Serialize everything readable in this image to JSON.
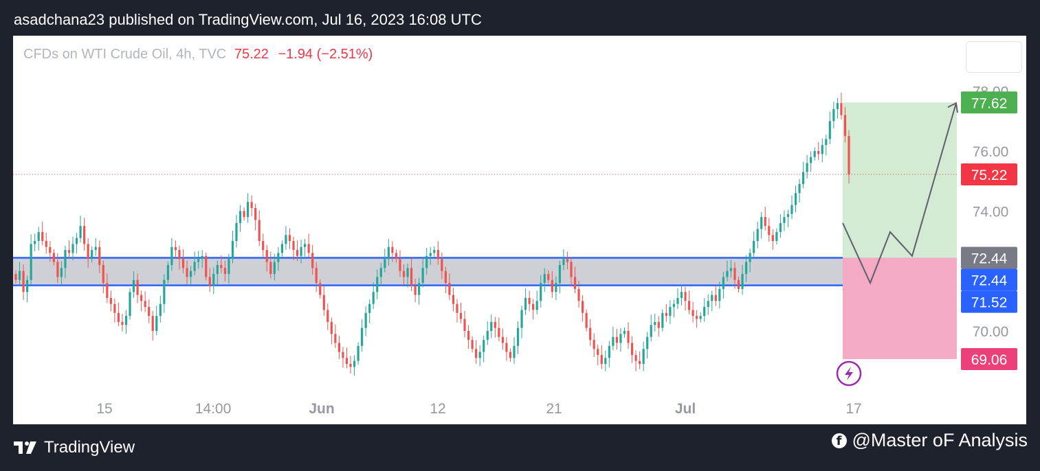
{
  "header": {
    "publish_text": "asadchana23 published on TradingView.com, Jul 16, 2023 16:08 UTC"
  },
  "legend": {
    "symbol": "CFDs on WTI Crude Oil, 4h, TVC",
    "price": "75.22",
    "change": "−1.94 (−2.51%)"
  },
  "footer": {
    "brand": "TradingView",
    "credit": "@Master oF Analysis",
    "brand_icon": "tradingview-logo-icon",
    "credit_icon": "facebook-icon"
  },
  "colors": {
    "up": "#26a69a",
    "down": "#ef5350",
    "zone_line": "#2962ff",
    "zone_fill": "#c9cbd0",
    "profit": "#d3ebd3",
    "loss": "#f4a9c5",
    "target_label": "#4caf50",
    "stop_label": "#ec407a",
    "last_label": "#f23645",
    "grey_label": "#787b86",
    "blue_label": "#2962ff"
  },
  "chart_data": {
    "type": "candlestick",
    "symbol": "CFDs on WTI Crude Oil",
    "timeframe": "4h",
    "source": "TVC",
    "ylim": [
      68.0,
      79.0
    ],
    "y_ticks": [
      "78.00",
      "76.00",
      "74.00",
      "70.00"
    ],
    "x_ticks": [
      "15",
      "14:00",
      "Jun",
      "12",
      "21",
      "Jul",
      "17"
    ],
    "bold_x_ticks": [
      "Jun",
      "Jul"
    ],
    "last_price": 75.22,
    "price_labels": [
      {
        "value": 77.62,
        "text": "77.62",
        "role": "target"
      },
      {
        "value": 75.22,
        "text": "75.22",
        "role": "last"
      },
      {
        "value": 72.44,
        "text": "72.44",
        "role": "entry"
      },
      {
        "value": 72.44,
        "text": "72.44",
        "role": "zone-top"
      },
      {
        "value": 71.52,
        "text": "71.52",
        "role": "zone-bottom"
      },
      {
        "value": 69.06,
        "text": "69.06",
        "role": "stop"
      }
    ],
    "zone": {
      "top": 72.44,
      "bottom": 71.52
    },
    "position": {
      "entry": 72.44,
      "target": 77.62,
      "stop": 69.06
    },
    "projection_path": [
      73.6,
      71.6,
      73.3,
      72.5,
      77.6
    ],
    "closes": [
      71.7,
      72.0,
      71.3,
      71.7,
      72.9,
      73.0,
      73.3,
      73.0,
      72.8,
      72.6,
      72.3,
      71.8,
      72.1,
      72.7,
      72.6,
      72.9,
      73.1,
      73.5,
      72.9,
      72.4,
      72.7,
      72.8,
      72.2,
      71.6,
      71.1,
      70.9,
      70.6,
      70.3,
      70.2,
      70.5,
      71.3,
      71.7,
      71.2,
      71.0,
      70.8,
      70.5,
      70.0,
      70.5,
      70.9,
      71.7,
      72.2,
      72.8,
      72.7,
      72.4,
      72.1,
      71.8,
      72.0,
      72.3,
      72.4,
      72.5,
      71.8,
      71.5,
      71.9,
      72.2,
      72.1,
      71.9,
      72.4,
      73.0,
      73.6,
      74.0,
      73.8,
      74.3,
      74.1,
      73.7,
      73.0,
      72.7,
      72.3,
      71.9,
      72.3,
      72.6,
      72.9,
      73.2,
      73.0,
      72.7,
      72.5,
      72.8,
      72.9,
      72.6,
      72.1,
      71.6,
      71.2,
      70.7,
      70.3,
      69.9,
      69.6,
      69.3,
      69.1,
      68.9,
      68.8,
      69.0,
      69.5,
      70.1,
      70.6,
      70.9,
      71.3,
      71.8,
      72.1,
      72.4,
      72.8,
      72.6,
      72.4,
      72.0,
      71.8,
      72.1,
      71.5,
      71.2,
      71.6,
      72.1,
      72.5,
      72.6,
      72.7,
      72.4,
      72.0,
      71.6,
      71.2,
      70.9,
      70.6,
      70.4,
      70.0,
      69.7,
      69.4,
      69.1,
      69.3,
      69.7,
      70.0,
      70.3,
      70.1,
      69.8,
      69.6,
      69.3,
      69.1,
      69.5,
      70.1,
      70.7,
      71.1,
      70.9,
      70.7,
      71.0,
      71.6,
      71.9,
      71.7,
      71.3,
      71.6,
      72.2,
      72.4,
      72.3,
      71.8,
      71.4,
      71.0,
      70.6,
      70.1,
      69.7,
      69.4,
      69.2,
      68.9,
      69.1,
      69.5,
      69.8,
      69.6,
      69.9,
      70.0,
      69.6,
      69.2,
      69.0,
      68.9,
      69.4,
      69.8,
      70.2,
      70.3,
      70.1,
      70.6,
      70.5,
      70.8,
      70.9,
      71.1,
      71.3,
      71.0,
      70.7,
      70.5,
      70.4,
      70.5,
      70.8,
      71.0,
      71.2,
      71.0,
      71.4,
      71.8,
      72.0,
      72.1,
      71.7,
      71.4,
      71.9,
      72.3,
      72.6,
      73.0,
      73.4,
      73.8,
      73.5,
      73.2,
      73.0,
      73.3,
      73.6,
      73.8,
      73.9,
      74.2,
      74.6,
      74.9,
      75.3,
      75.6,
      75.8,
      76.0,
      75.9,
      76.2,
      76.4,
      77.0,
      77.4,
      77.6,
      77.2,
      76.5,
      75.22
    ]
  }
}
